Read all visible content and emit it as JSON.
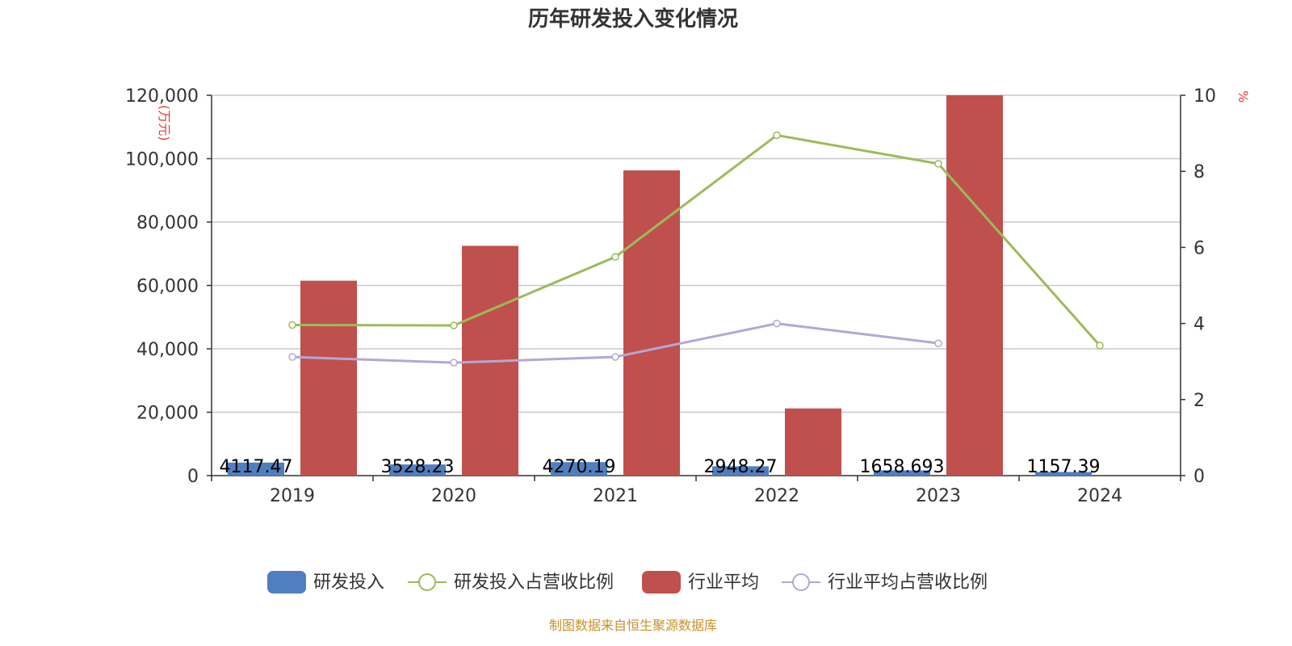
{
  "chart_data": {
    "type": "bar",
    "title": "历年研发投入变化情况",
    "categories": [
      "2019",
      "2020",
      "2021",
      "2022",
      "2023",
      "2024"
    ],
    "y_left": {
      "unit": "(万元)",
      "range": [
        0,
        120000
      ],
      "ticks": [
        "0",
        "20,000",
        "40,000",
        "60,000",
        "80,000",
        "100,000",
        "120,000"
      ],
      "tick_values": [
        0,
        20000,
        40000,
        60000,
        80000,
        100000,
        120000
      ]
    },
    "y_right": {
      "unit": "%",
      "range": [
        0,
        10
      ],
      "ticks": [
        "0",
        "2",
        "4",
        "6",
        "8",
        "10"
      ],
      "tick_values": [
        0,
        2,
        4,
        6,
        8,
        10
      ]
    },
    "grid": true,
    "legend_position": "bottom",
    "series": [
      {
        "name": "研发投入",
        "type": "bar",
        "axis": "left",
        "color": "#4f7fc0",
        "values": [
          4117.47,
          3528.23,
          4270.19,
          2948.27,
          1658.693,
          1157.39
        ],
        "labels": [
          "4117.47",
          "3528.23",
          "4270.19",
          "2948.27",
          "1658.693",
          "1157.39"
        ]
      },
      {
        "name": "研发投入占营收比例",
        "type": "line",
        "axis": "right",
        "color": "#9bbb59",
        "values": [
          3.96,
          3.95,
          5.75,
          8.95,
          8.2,
          3.42
        ]
      },
      {
        "name": "行业平均",
        "type": "bar",
        "axis": "left",
        "color": "#c0504d",
        "values": [
          61500,
          72500,
          96300,
          21200,
          120000,
          null
        ]
      },
      {
        "name": "行业平均占营收比例",
        "type": "line",
        "axis": "right",
        "color": "#b4a7d6",
        "values": [
          3.12,
          2.97,
          3.12,
          4.0,
          3.48,
          null
        ]
      }
    ],
    "source": "制图数据来自恒生聚源数据库"
  }
}
